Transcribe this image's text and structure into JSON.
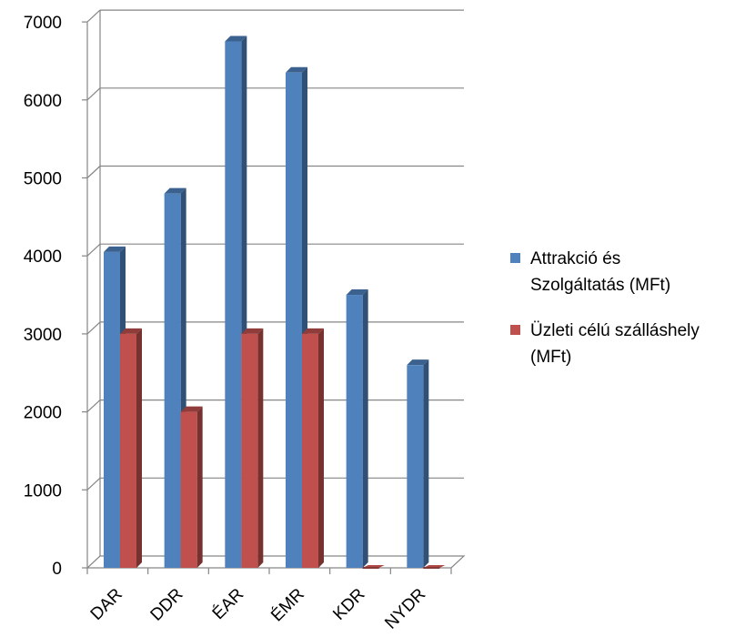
{
  "chart_data": {
    "type": "bar",
    "categories": [
      "DAR",
      "DDR",
      "ÉAR",
      "ÉMR",
      "KDR",
      "NYDR"
    ],
    "series": [
      {
        "name": "Attrakció és Szolgáltatás (MFt)",
        "name_lines": [
          "Attrakció és",
          "Szolgáltatás (MFt)"
        ],
        "values": [
          4050,
          4800,
          6750,
          6350,
          3500,
          2600
        ],
        "color": "#4F81BD"
      },
      {
        "name": "Üzleti célú szálláshely (MFt)",
        "name_lines": [
          "Üzleti célú szálláshely",
          "(MFt)"
        ],
        "values": [
          3000,
          2000,
          3000,
          3000,
          0,
          0
        ],
        "color": "#C0504D"
      }
    ],
    "ylim": [
      0,
      7000
    ],
    "yticks": [
      0,
      1000,
      2000,
      3000,
      4000,
      5000,
      6000,
      7000
    ],
    "grid": true,
    "legend": "right",
    "style": "3d-clustered-column"
  }
}
